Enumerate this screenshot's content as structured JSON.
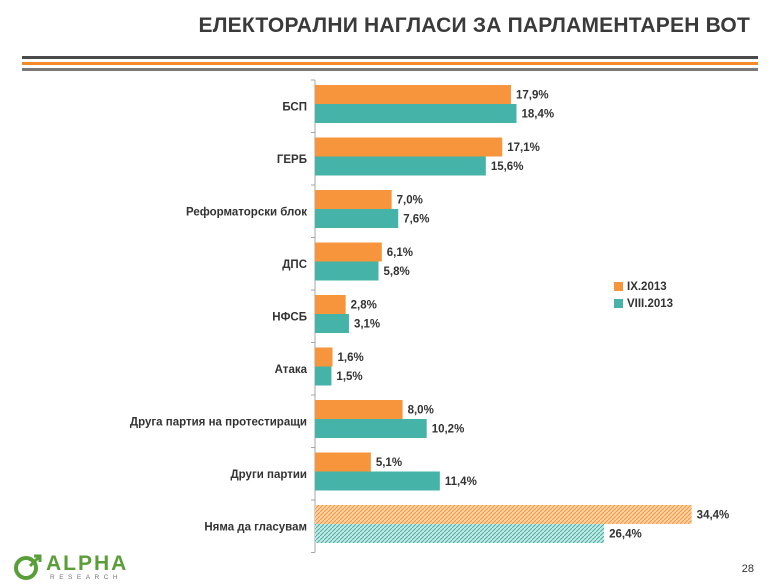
{
  "title": "ЕЛЕКТОРАЛНИ НАГЛАСИ ЗА ПАРЛАМЕНТАРЕН ВОТ",
  "page_number": "28",
  "logo": {
    "word": "ALPHA",
    "sub": "RESEARCH"
  },
  "colors": {
    "series1": "#f7953c",
    "series2": "#45b3a8",
    "text": "#333333"
  },
  "chart_data": {
    "type": "bar",
    "orientation": "horizontal",
    "categories": [
      "БСП",
      "ГЕРБ",
      "Реформаторски блок",
      "ДПС",
      "НФСБ",
      "Атака",
      "Друга партия на протестиращи",
      "Други партии",
      "Няма да гласувам"
    ],
    "series": [
      {
        "name": "IX.2013",
        "values": [
          17.9,
          17.1,
          7.0,
          6.1,
          2.8,
          1.6,
          8.0,
          5.1,
          34.4
        ],
        "labels": [
          "17,9%",
          "17,1%",
          "7,0%",
          "6,1%",
          "2,8%",
          "1,6%",
          "8,0%",
          "5,1%",
          "34,4%"
        ]
      },
      {
        "name": "VIII.2013",
        "values": [
          18.4,
          15.6,
          7.6,
          5.8,
          3.1,
          1.5,
          10.2,
          11.4,
          26.4
        ],
        "labels": [
          "18,4%",
          "15,6%",
          "7,6%",
          "5,8%",
          "3,1%",
          "1,5%",
          "10,2%",
          "11,4%",
          "26,4%"
        ]
      }
    ],
    "hatched_category": "Няма да гласувам",
    "xlim": [
      0,
      40
    ],
    "grid": false,
    "legend_position": "right"
  }
}
